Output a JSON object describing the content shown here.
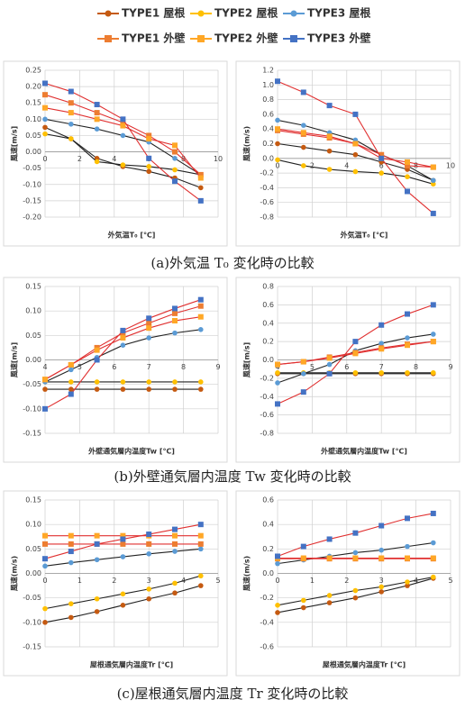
{
  "captions": [
    "(a)外気温 T₀ 変化時の比較",
    "(b)外壁通気層内温度 Tw 変化時の比較",
    "(c)屋根通気層内温度 Tr 変化時の比較"
  ],
  "chart_data": [
    {
      "type": "line",
      "xlabel": "外気温T₀ [℃]",
      "ylabel": "風速[m/s]",
      "x": [
        0,
        1.5,
        3,
        4.5,
        6,
        7.5,
        9
      ],
      "xlim": [
        0,
        10
      ],
      "xticks": [
        0,
        2,
        4,
        6,
        8,
        10
      ],
      "ylim": [
        -0.2,
        0.25
      ],
      "yticks": [
        0.25,
        {
          "value": 0.2,
          "label": "0.20"
        },
        0.15,
        {
          "value": 0.1,
          "label": "0.10"
        },
        0.05,
        {
          "value": 0,
          "label": "0.00"
        },
        -0.05,
        {
          "value": -0.1,
          "label": "-0.10"
        },
        -0.15,
        {
          "value": -0.2,
          "label": "-0.20"
        }
      ],
      "grid": true,
      "series": [
        {
          "name": "TYPE1 屋根",
          "color": "#c55a11",
          "line_color": "#222",
          "marker": "circle",
          "values": [
            0.075,
            0.04,
            -0.02,
            -0.045,
            -0.06,
            -0.08,
            -0.11
          ]
        },
        {
          "name": "TYPE2 屋根",
          "color": "#ffc000",
          "line_color": "#222",
          "marker": "circle",
          "values": [
            0.055,
            0.04,
            -0.03,
            -0.04,
            -0.045,
            -0.055,
            -0.07
          ]
        },
        {
          "name": "TYPE3 屋根",
          "color": "#5b9bd5",
          "line_color": "#222",
          "marker": "circle",
          "values": [
            0.1,
            0.085,
            0.07,
            0.05,
            0.03,
            -0.02,
            -0.07
          ]
        },
        {
          "name": "TYPE1 外壁",
          "color": "#ed7d31",
          "line_color": "#e03030",
          "marker": "square",
          "values": [
            0.175,
            0.15,
            0.12,
            0.09,
            0.05,
            0,
            -0.07
          ]
        },
        {
          "name": "TYPE2 外壁",
          "color": "#ffa726",
          "line_color": "#e03030",
          "marker": "square",
          "values": [
            0.135,
            0.12,
            0.1,
            0.08,
            0.04,
            0.02,
            -0.08
          ]
        },
        {
          "name": "TYPE3 外壁",
          "color": "#4472c4",
          "line_color": "#e03030",
          "marker": "square",
          "values": [
            0.21,
            0.185,
            0.145,
            0.1,
            -0.02,
            -0.09,
            -0.15
          ]
        }
      ]
    },
    {
      "type": "line",
      "xlabel": "外気温T₀ [℃]",
      "ylabel": "風速(m/s)",
      "x": [
        0,
        1.5,
        3,
        4.5,
        6,
        7.5,
        9
      ],
      "xlim": [
        0,
        10
      ],
      "xticks": [
        0,
        2,
        4,
        6,
        8,
        10
      ],
      "ylim": [
        -0.8,
        1.2
      ],
      "yticks": [
        1.2,
        {
          "value": 1,
          "label": "1.0"
        },
        0.8,
        0.6,
        0.4,
        0.2,
        {
          "value": 0,
          "label": "0.0"
        },
        -0.2,
        -0.4,
        -0.6,
        -0.8
      ],
      "grid": true,
      "series": [
        {
          "name": "TYPE1 屋根",
          "color": "#c55a11",
          "line_color": "#222",
          "marker": "circle",
          "values": [
            0.2,
            0.15,
            0.1,
            0.05,
            -0.05,
            -0.15,
            -0.3
          ]
        },
        {
          "name": "TYPE2 屋根",
          "color": "#ffc000",
          "line_color": "#222",
          "marker": "circle",
          "values": [
            -0.02,
            -0.1,
            -0.15,
            -0.18,
            -0.2,
            -0.25,
            -0.35
          ]
        },
        {
          "name": "TYPE3 屋根",
          "color": "#5b9bd5",
          "line_color": "#222",
          "marker": "circle",
          "values": [
            0.52,
            0.45,
            0.35,
            0.25,
            0.05,
            -0.1,
            -0.3
          ]
        },
        {
          "name": "TYPE1 外壁",
          "color": "#ed7d31",
          "line_color": "#e03030",
          "marker": "square",
          "values": [
            0.38,
            0.33,
            0.28,
            0.2,
            0.05,
            -0.1,
            -0.12
          ]
        },
        {
          "name": "TYPE2 外壁",
          "color": "#ffa726",
          "line_color": "#e03030",
          "marker": "square",
          "values": [
            0.4,
            0.35,
            0.3,
            0.2,
            0,
            -0.05,
            -0.12
          ]
        },
        {
          "name": "TYPE3 外壁",
          "color": "#4472c4",
          "line_color": "#e03030",
          "marker": "square",
          "values": [
            1.05,
            0.9,
            0.72,
            0.6,
            0,
            -0.45,
            -0.75
          ]
        }
      ]
    },
    {
      "type": "line",
      "xlabel": "外壁通気層内温度Tw [℃]",
      "ylabel": "風速[m/s]",
      "x": [
        4,
        4.75,
        5.5,
        6.25,
        7,
        7.75,
        8.5
      ],
      "xlim": [
        4,
        9
      ],
      "xticks": [
        4,
        5,
        6,
        7,
        8,
        9
      ],
      "ylim": [
        -0.15,
        0.15
      ],
      "yticks": [
        0.15,
        {
          "value": 0.1,
          "label": "0.10"
        },
        0.05,
        {
          "value": 0,
          "label": "0.00"
        },
        -0.05,
        {
          "value": -0.1,
          "label": "-0.10"
        },
        -0.15
      ],
      "grid": true,
      "series": [
        {
          "name": "TYPE1 屋根",
          "color": "#c55a11",
          "line_color": "#222",
          "marker": "circle",
          "values": [
            -0.06,
            -0.06,
            -0.06,
            -0.06,
            -0.06,
            -0.06,
            -0.06
          ]
        },
        {
          "name": "TYPE2 屋根",
          "color": "#ffc000",
          "line_color": "#222",
          "marker": "circle",
          "values": [
            -0.045,
            -0.045,
            -0.045,
            -0.045,
            -0.045,
            -0.045,
            -0.045
          ]
        },
        {
          "name": "TYPE3 屋根",
          "color": "#5b9bd5",
          "line_color": "#222",
          "marker": "circle",
          "values": [
            -0.045,
            -0.02,
            0.005,
            0.03,
            0.045,
            0.055,
            0.062
          ]
        },
        {
          "name": "TYPE1 外壁",
          "color": "#ed7d31",
          "line_color": "#e03030",
          "marker": "square",
          "values": [
            -0.04,
            -0.01,
            0.025,
            0.055,
            0.075,
            0.095,
            0.11
          ]
        },
        {
          "name": "TYPE2 外壁",
          "color": "#ffa726",
          "line_color": "#e03030",
          "marker": "square",
          "values": [
            -0.04,
            -0.01,
            0.02,
            0.045,
            0.065,
            0.08,
            0.088
          ]
        },
        {
          "name": "TYPE3 外壁",
          "color": "#4472c4",
          "line_color": "#e03030",
          "marker": "square",
          "values": [
            -0.1,
            -0.07,
            0,
            0.06,
            0.085,
            0.105,
            0.123
          ]
        }
      ]
    },
    {
      "type": "line",
      "xlabel": "外壁通気層内温度Tw [℃]",
      "ylabel": "風速[m/s]",
      "x": [
        4,
        4.75,
        5.5,
        6.25,
        7,
        7.75,
        8.5
      ],
      "xlim": [
        4,
        9
      ],
      "xticks": [
        4,
        5,
        6,
        7,
        8,
        9
      ],
      "ylim": [
        -0.8,
        0.8
      ],
      "yticks": [
        0.8,
        0.6,
        0.4,
        0.2,
        {
          "value": 0,
          "label": "0.0"
        },
        -0.2,
        -0.4,
        -0.6,
        -0.8
      ],
      "grid": true,
      "series": [
        {
          "name": "TYPE1 屋根",
          "color": "#c55a11",
          "line_color": "#222",
          "marker": "circle",
          "values": [
            -0.15,
            -0.15,
            -0.15,
            -0.15,
            -0.15,
            -0.15,
            -0.15
          ]
        },
        {
          "name": "TYPE2 屋根",
          "color": "#ffc000",
          "line_color": "#222",
          "marker": "circle",
          "values": [
            -0.14,
            -0.14,
            -0.14,
            -0.14,
            -0.14,
            -0.14,
            -0.14
          ]
        },
        {
          "name": "TYPE3 屋根",
          "color": "#5b9bd5",
          "line_color": "#222",
          "marker": "circle",
          "values": [
            -0.25,
            -0.15,
            -0.05,
            0.1,
            0.18,
            0.24,
            0.28
          ]
        },
        {
          "name": "TYPE1 外壁",
          "color": "#ed7d31",
          "line_color": "#e03030",
          "marker": "square",
          "values": [
            -0.05,
            -0.02,
            0.03,
            0.08,
            0.13,
            0.17,
            0.2
          ]
        },
        {
          "name": "TYPE2 外壁",
          "color": "#ffa726",
          "line_color": "#e03030",
          "marker": "square",
          "values": [
            -0.05,
            -0.02,
            0.02,
            0.07,
            0.12,
            0.16,
            0.2
          ]
        },
        {
          "name": "TYPE3 外壁",
          "color": "#4472c4",
          "line_color": "#e03030",
          "marker": "square",
          "values": [
            -0.48,
            -0.35,
            -0.15,
            0.2,
            0.38,
            0.5,
            0.6
          ]
        }
      ]
    },
    {
      "type": "line",
      "xlabel": "屋根通気層内温度Tr [℃]",
      "ylabel": "風速(m/s)",
      "x": [
        0,
        0.75,
        1.5,
        2.25,
        3,
        3.75,
        4.5
      ],
      "xlim": [
        0,
        5
      ],
      "xticks": [
        0,
        1,
        2,
        3,
        4,
        5
      ],
      "ylim": [
        -0.15,
        0.15
      ],
      "yticks": [
        0.15,
        {
          "value": 0.1,
          "label": "0.10"
        },
        0.05,
        {
          "value": 0,
          "label": "0.00"
        },
        -0.05,
        {
          "value": -0.1,
          "label": "-0.10"
        },
        -0.15
      ],
      "grid": true,
      "series": [
        {
          "name": "TYPE1 屋根",
          "color": "#c55a11",
          "line_color": "#222",
          "marker": "circle",
          "values": [
            -0.1,
            -0.09,
            -0.078,
            -0.065,
            -0.052,
            -0.04,
            -0.025
          ]
        },
        {
          "name": "TYPE2 屋根",
          "color": "#ffc000",
          "line_color": "#222",
          "marker": "circle",
          "values": [
            -0.072,
            -0.062,
            -0.052,
            -0.042,
            -0.032,
            -0.02,
            -0.005
          ]
        },
        {
          "name": "TYPE3 屋根",
          "color": "#5b9bd5",
          "line_color": "#222",
          "marker": "circle",
          "values": [
            0.015,
            0.022,
            0.028,
            0.034,
            0.04,
            0.045,
            0.05
          ]
        },
        {
          "name": "TYPE1 外壁",
          "color": "#ed7d31",
          "line_color": "#e03030",
          "marker": "square",
          "values": [
            0.06,
            0.06,
            0.06,
            0.06,
            0.06,
            0.06,
            0.06
          ]
        },
        {
          "name": "TYPE2 外壁",
          "color": "#ffa726",
          "line_color": "#e03030",
          "marker": "square",
          "values": [
            0.077,
            0.077,
            0.077,
            0.077,
            0.077,
            0.077,
            0.077
          ]
        },
        {
          "name": "TYPE3 外壁",
          "color": "#4472c4",
          "line_color": "#e03030",
          "marker": "square",
          "values": [
            0.03,
            0.045,
            0.06,
            0.07,
            0.08,
            0.09,
            0.1
          ]
        }
      ]
    },
    {
      "type": "line",
      "xlabel": "屋根通気層内温度Tr [℃]",
      "ylabel": "風速(m/s)",
      "x": [
        0,
        0.75,
        1.5,
        2.25,
        3,
        3.75,
        4.5
      ],
      "xlim": [
        0,
        5
      ],
      "xticks": [
        0,
        1,
        2,
        3,
        4,
        5
      ],
      "ylim": [
        -0.6,
        0.6
      ],
      "yticks": [
        0.6,
        0.4,
        0.2,
        {
          "value": 0,
          "label": "0.0"
        },
        -0.2,
        -0.4,
        -0.6
      ],
      "grid": true,
      "series": [
        {
          "name": "TYPE1 屋根",
          "color": "#c55a11",
          "line_color": "#222",
          "marker": "circle",
          "values": [
            -0.32,
            -0.28,
            -0.24,
            -0.2,
            -0.15,
            -0.1,
            -0.04
          ]
        },
        {
          "name": "TYPE2 屋根",
          "color": "#ffc000",
          "line_color": "#222",
          "marker": "circle",
          "values": [
            -0.26,
            -0.22,
            -0.18,
            -0.14,
            -0.11,
            -0.07,
            -0.03
          ]
        },
        {
          "name": "TYPE3 屋根",
          "color": "#5b9bd5",
          "line_color": "#222",
          "marker": "circle",
          "values": [
            0.08,
            0.11,
            0.14,
            0.17,
            0.19,
            0.22,
            0.25
          ]
        },
        {
          "name": "TYPE1 外壁",
          "color": "#ed7d31",
          "line_color": "#e03030",
          "marker": "square",
          "values": [
            0.12,
            0.12,
            0.12,
            0.12,
            0.12,
            0.12,
            0.12
          ]
        },
        {
          "name": "TYPE2 外壁",
          "color": "#ffa726",
          "line_color": "#e03030",
          "marker": "square",
          "values": [
            0.125,
            0.125,
            0.125,
            0.125,
            0.125,
            0.125,
            0.125
          ]
        },
        {
          "name": "TYPE3 外壁",
          "color": "#4472c4",
          "line_color": "#e03030",
          "marker": "square",
          "values": [
            0.14,
            0.22,
            0.28,
            0.33,
            0.39,
            0.45,
            0.49
          ]
        }
      ]
    }
  ]
}
